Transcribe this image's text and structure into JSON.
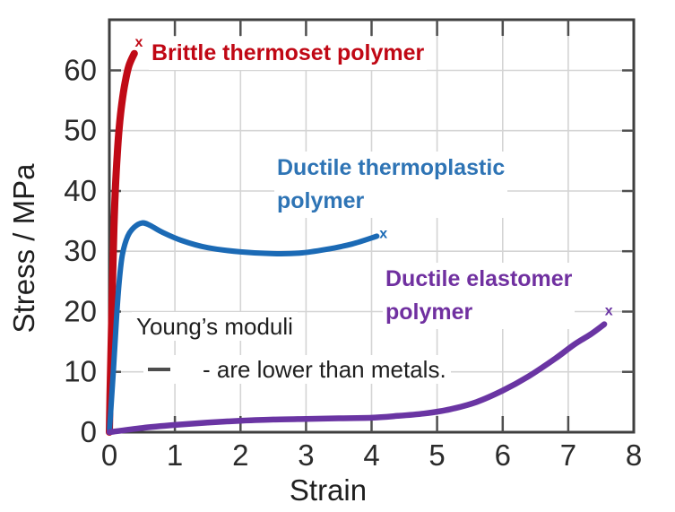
{
  "figure": {
    "background": "#ffffff",
    "axis_color": "#3f3f3f",
    "grid_color": "#d4d4d4",
    "tick_color": "#4f4f4f",
    "tick_label_color": "#2b2b2b"
  },
  "chart_data": {
    "type": "line",
    "title": "",
    "xlabel": "Strain",
    "ylabel": "Stress / MPa",
    "xlim": [
      0,
      8
    ],
    "ylim": [
      0,
      68.4
    ],
    "xticks": [
      0,
      1,
      2,
      3,
      4,
      5,
      6,
      7,
      8
    ],
    "yticks": [
      0,
      10,
      20,
      30,
      40,
      50,
      60
    ],
    "grid": true,
    "legend_position": "none",
    "series": [
      {
        "name": "Brittle thermoset polymer",
        "color": "#c00a16",
        "width": 8,
        "points": [
          [
            0,
            0
          ],
          [
            0.01,
            6
          ],
          [
            0.03,
            16
          ],
          [
            0.05,
            26
          ],
          [
            0.07,
            34
          ],
          [
            0.09,
            40
          ],
          [
            0.12,
            46
          ],
          [
            0.15,
            50.5
          ],
          [
            0.19,
            54.5
          ],
          [
            0.24,
            58
          ],
          [
            0.3,
            60.8
          ],
          [
            0.38,
            62.8
          ]
        ],
        "end_marker": {
          "x": 0.45,
          "y": 64.8,
          "glyph": "x"
        }
      },
      {
        "name": "Ductile thermoplastic polymer",
        "color": "#1b6ab5",
        "width": 6,
        "points": [
          [
            0,
            0
          ],
          [
            0.06,
            10
          ],
          [
            0.11,
            19
          ],
          [
            0.15,
            25
          ],
          [
            0.2,
            29.5
          ],
          [
            0.28,
            32.5
          ],
          [
            0.38,
            34.0
          ],
          [
            0.5,
            34.7
          ],
          [
            0.62,
            34.3
          ],
          [
            0.8,
            33.2
          ],
          [
            1.1,
            31.8
          ],
          [
            1.5,
            30.6
          ],
          [
            2.0,
            29.9
          ],
          [
            2.5,
            29.6
          ],
          [
            2.9,
            29.7
          ],
          [
            3.3,
            30.3
          ],
          [
            3.7,
            31.2
          ],
          [
            4.08,
            32.5
          ]
        ],
        "end_marker": {
          "x": 4.18,
          "y": 33.1,
          "glyph": "x"
        }
      },
      {
        "name": "Ductile elastomer polymer",
        "color": "#6a35a3",
        "width": 6.5,
        "points": [
          [
            0,
            0
          ],
          [
            0.5,
            0.7
          ],
          [
            1.0,
            1.2
          ],
          [
            1.5,
            1.6
          ],
          [
            2.0,
            1.9
          ],
          [
            2.5,
            2.1
          ],
          [
            3.0,
            2.2
          ],
          [
            3.5,
            2.3
          ],
          [
            4.0,
            2.4
          ],
          [
            4.4,
            2.7
          ],
          [
            4.8,
            3.1
          ],
          [
            5.2,
            3.8
          ],
          [
            5.6,
            5.0
          ],
          [
            6.0,
            6.9
          ],
          [
            6.4,
            9.3
          ],
          [
            6.8,
            12.2
          ],
          [
            7.1,
            14.6
          ],
          [
            7.35,
            16.3
          ],
          [
            7.55,
            17.9
          ]
        ],
        "end_marker": {
          "x": 7.62,
          "y": 20.3,
          "glyph": "x"
        }
      }
    ]
  },
  "labels": {
    "brittle": {
      "text": "Brittle thermoset polymer",
      "color": "#c00714"
    },
    "thermoplastic": {
      "line1": "Ductile thermoplastic",
      "line2": "polymer",
      "color": "#2e74b5"
    },
    "elastomer": {
      "line1": "Ductile elastomer",
      "line2": "polymer",
      "color": "#7030a0"
    },
    "annotation": {
      "line1": "Young’s moduli",
      "line2": "- are lower than metals.",
      "text_color": "#1f1f1f",
      "dash_color": "#4d4d4d"
    }
  }
}
